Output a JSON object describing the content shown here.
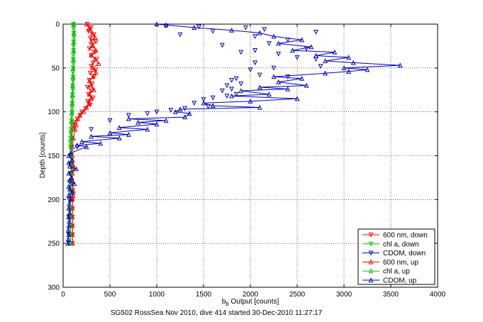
{
  "chart_data": {
    "type": "scatter",
    "title": "",
    "xlabel": "b_b Output [counts]",
    "xlabel_base": "b",
    "xlabel_sub": "b",
    "xlabel_rest": " Output [counts]",
    "ylabel": "Depth [counts]",
    "caption": "SG502 RossSea Nov 2010, dive 414 started 30-Dec-2010 11:27:17",
    "xlim": [
      0,
      4000
    ],
    "ylim": [
      0,
      300
    ],
    "y_reversed": true,
    "grid": true,
    "legend_position": "bottom-right",
    "x_ticks": [
      "0",
      "500",
      "1000",
      "1500",
      "2000",
      "2500",
      "3000",
      "3500",
      "4000"
    ],
    "y_ticks": [
      "0",
      "50",
      "100",
      "150",
      "200",
      "250",
      "300"
    ],
    "series": [
      {
        "name": "600 nm, down",
        "color": "#ff0000",
        "marker": "triangle-down",
        "connected": true,
        "points": [
          [
            260,
            0
          ],
          [
            300,
            4
          ],
          [
            270,
            8
          ],
          [
            330,
            12
          ],
          [
            290,
            16
          ],
          [
            350,
            20
          ],
          [
            310,
            24
          ],
          [
            280,
            28
          ],
          [
            340,
            32
          ],
          [
            300,
            36
          ],
          [
            360,
            40
          ],
          [
            320,
            44
          ],
          [
            300,
            48
          ],
          [
            350,
            52
          ],
          [
            290,
            56
          ],
          [
            330,
            60
          ],
          [
            280,
            64
          ],
          [
            310,
            68
          ],
          [
            260,
            72
          ],
          [
            300,
            76
          ],
          [
            270,
            80
          ],
          [
            320,
            84
          ],
          [
            260,
            88
          ],
          [
            290,
            92
          ],
          [
            240,
            96
          ],
          [
            200,
            100
          ],
          [
            180,
            104
          ],
          [
            150,
            108
          ],
          [
            120,
            112
          ],
          [
            110,
            116
          ],
          [
            100,
            120
          ],
          [
            95,
            130
          ],
          [
            90,
            140
          ],
          [
            88,
            150
          ],
          [
            90,
            160
          ],
          [
            92,
            170
          ],
          [
            95,
            180
          ],
          [
            100,
            190
          ],
          [
            100,
            200
          ],
          [
            100,
            210
          ],
          [
            100,
            220
          ],
          [
            100,
            230
          ],
          [
            100,
            240
          ],
          [
            100,
            250
          ]
        ]
      },
      {
        "name": "chl a, down",
        "color": "#00c000",
        "marker": "triangle-down",
        "connected": true,
        "points": [
          [
            110,
            0
          ],
          [
            112,
            5
          ],
          [
            115,
            10
          ],
          [
            115,
            15
          ],
          [
            112,
            20
          ],
          [
            110,
            25
          ],
          [
            112,
            30
          ],
          [
            110,
            35
          ],
          [
            108,
            40
          ],
          [
            110,
            45
          ],
          [
            108,
            50
          ],
          [
            105,
            55
          ],
          [
            108,
            60
          ],
          [
            105,
            65
          ],
          [
            102,
            70
          ],
          [
            105,
            75
          ],
          [
            100,
            80
          ],
          [
            100,
            85
          ],
          [
            98,
            90
          ],
          [
            95,
            95
          ],
          [
            95,
            100
          ],
          [
            92,
            105
          ],
          [
            90,
            110
          ],
          [
            88,
            115
          ],
          [
            85,
            120
          ],
          [
            82,
            125
          ],
          [
            80,
            130
          ],
          [
            78,
            135
          ],
          [
            78,
            140
          ],
          [
            80,
            150
          ],
          [
            80,
            160
          ],
          [
            82,
            170
          ],
          [
            80,
            180
          ],
          [
            80,
            190
          ],
          [
            80,
            200
          ],
          [
            78,
            210
          ],
          [
            78,
            220
          ],
          [
            78,
            230
          ],
          [
            78,
            240
          ],
          [
            80,
            250
          ]
        ]
      },
      {
        "name": "CDOM, down",
        "color": "#0000c0",
        "marker": "triangle-down",
        "connected": false,
        "points": [
          [
            1100,
            2
          ],
          [
            1450,
            3
          ],
          [
            1950,
            4
          ],
          [
            2150,
            6
          ],
          [
            1600,
            8
          ],
          [
            2700,
            9
          ],
          [
            1250,
            12
          ],
          [
            2050,
            14
          ],
          [
            2400,
            18
          ],
          [
            2200,
            22
          ],
          [
            1700,
            24
          ],
          [
            2600,
            28
          ],
          [
            2050,
            30
          ],
          [
            1900,
            32
          ],
          [
            2300,
            34
          ],
          [
            2500,
            38
          ],
          [
            2700,
            40
          ],
          [
            2050,
            44
          ],
          [
            2750,
            48
          ],
          [
            2250,
            50
          ],
          [
            2000,
            52
          ],
          [
            2100,
            58
          ],
          [
            2400,
            60
          ],
          [
            1850,
            62
          ],
          [
            1800,
            64
          ],
          [
            1900,
            68
          ],
          [
            1750,
            70
          ],
          [
            1800,
            74
          ],
          [
            1700,
            76
          ],
          [
            1850,
            80
          ],
          [
            1750,
            82
          ],
          [
            1600,
            84
          ],
          [
            1500,
            86
          ],
          [
            1400,
            90
          ],
          [
            1550,
            94
          ],
          [
            1300,
            96
          ],
          [
            1150,
            98
          ],
          [
            1000,
            100
          ],
          [
            900,
            102
          ],
          [
            700,
            104
          ],
          [
            500,
            110
          ],
          [
            300,
            120
          ],
          [
            150,
            140
          ],
          [
            80,
            160
          ],
          [
            70,
            180
          ],
          [
            65,
            200
          ],
          [
            60,
            220
          ],
          [
            60,
            240
          ],
          [
            60,
            250
          ]
        ]
      },
      {
        "name": "600 nm, up",
        "color": "#ff0000",
        "marker": "triangle-up",
        "connected": true,
        "points": [
          [
            100,
            250
          ],
          [
            100,
            240
          ],
          [
            100,
            230
          ],
          [
            100,
            220
          ],
          [
            100,
            210
          ],
          [
            100,
            200
          ],
          [
            105,
            195
          ],
          [
            110,
            190
          ],
          [
            100,
            180
          ],
          [
            100,
            170
          ],
          [
            110,
            163
          ],
          [
            105,
            160
          ],
          [
            100,
            150
          ],
          [
            100,
            140
          ],
          [
            110,
            130
          ],
          [
            130,
            120
          ],
          [
            140,
            115
          ],
          [
            160,
            108
          ],
          [
            180,
            104
          ],
          [
            220,
            100
          ],
          [
            250,
            95
          ],
          [
            280,
            90
          ],
          [
            300,
            85
          ],
          [
            280,
            80
          ],
          [
            330,
            75
          ],
          [
            300,
            70
          ],
          [
            280,
            65
          ],
          [
            320,
            60
          ],
          [
            350,
            55
          ],
          [
            310,
            50
          ],
          [
            380,
            45
          ],
          [
            340,
            40
          ],
          [
            300,
            35
          ],
          [
            350,
            30
          ],
          [
            320,
            25
          ],
          [
            300,
            20
          ],
          [
            340,
            15
          ],
          [
            310,
            10
          ],
          [
            280,
            5
          ],
          [
            250,
            0
          ]
        ]
      },
      {
        "name": "chl a, up",
        "color": "#00c000",
        "marker": "triangle-up",
        "connected": true,
        "points": [
          [
            80,
            250
          ],
          [
            80,
            240
          ],
          [
            80,
            230
          ],
          [
            80,
            220
          ],
          [
            80,
            210
          ],
          [
            80,
            200
          ],
          [
            82,
            190
          ],
          [
            85,
            180
          ],
          [
            85,
            170
          ],
          [
            88,
            160
          ],
          [
            85,
            150
          ],
          [
            85,
            140
          ],
          [
            88,
            130
          ],
          [
            90,
            120
          ],
          [
            92,
            110
          ],
          [
            95,
            100
          ],
          [
            98,
            90
          ],
          [
            100,
            80
          ],
          [
            102,
            70
          ],
          [
            105,
            60
          ],
          [
            108,
            50
          ],
          [
            110,
            40
          ],
          [
            112,
            30
          ],
          [
            115,
            20
          ],
          [
            115,
            10
          ],
          [
            112,
            0
          ]
        ]
      },
      {
        "name": "CDOM, up",
        "color": "#0000c0",
        "marker": "triangle-up",
        "connected": true,
        "points": [
          [
            50,
            250
          ],
          [
            55,
            245
          ],
          [
            60,
            240
          ],
          [
            55,
            235
          ],
          [
            60,
            230
          ],
          [
            65,
            225
          ],
          [
            60,
            220
          ],
          [
            70,
            215
          ],
          [
            60,
            210
          ],
          [
            65,
            205
          ],
          [
            80,
            200
          ],
          [
            60,
            195
          ],
          [
            100,
            192
          ],
          [
            70,
            188
          ],
          [
            60,
            185
          ],
          [
            120,
            182
          ],
          [
            70,
            178
          ],
          [
            90,
            175
          ],
          [
            60,
            170
          ],
          [
            140,
            165
          ],
          [
            70,
            162
          ],
          [
            60,
            158
          ],
          [
            100,
            155
          ],
          [
            60,
            150
          ],
          [
            80,
            147
          ],
          [
            250,
            140
          ],
          [
            150,
            138
          ],
          [
            400,
            136
          ],
          [
            200,
            134
          ],
          [
            600,
            130
          ],
          [
            300,
            128
          ],
          [
            700,
            126
          ],
          [
            500,
            124
          ],
          [
            900,
            120
          ],
          [
            600,
            118
          ],
          [
            1000,
            114
          ],
          [
            800,
            112
          ],
          [
            1100,
            110
          ],
          [
            700,
            108
          ],
          [
            1300,
            106
          ],
          [
            1350,
            102
          ],
          [
            1200,
            100
          ],
          [
            1250,
            97
          ],
          [
            2100,
            95
          ],
          [
            1600,
            93
          ],
          [
            1500,
            90
          ],
          [
            2000,
            88
          ],
          [
            2500,
            85
          ],
          [
            1800,
            82
          ],
          [
            2200,
            80
          ],
          [
            1900,
            76
          ],
          [
            2400,
            74
          ],
          [
            2100,
            72
          ],
          [
            2600,
            70
          ],
          [
            2300,
            66
          ],
          [
            2550,
            62
          ],
          [
            2250,
            60
          ],
          [
            2800,
            56
          ],
          [
            3050,
            54
          ],
          [
            3250,
            52
          ],
          [
            3000,
            50
          ],
          [
            3600,
            47
          ],
          [
            3100,
            44
          ],
          [
            2800,
            42
          ],
          [
            3050,
            38
          ],
          [
            2700,
            36
          ],
          [
            2900,
            32
          ],
          [
            2450,
            30
          ],
          [
            2650,
            26
          ],
          [
            2300,
            22
          ],
          [
            2550,
            18
          ],
          [
            2250,
            14
          ],
          [
            2100,
            10
          ],
          [
            1800,
            7
          ],
          [
            1400,
            4
          ],
          [
            1100,
            1
          ],
          [
            1000,
            0
          ]
        ]
      }
    ]
  }
}
